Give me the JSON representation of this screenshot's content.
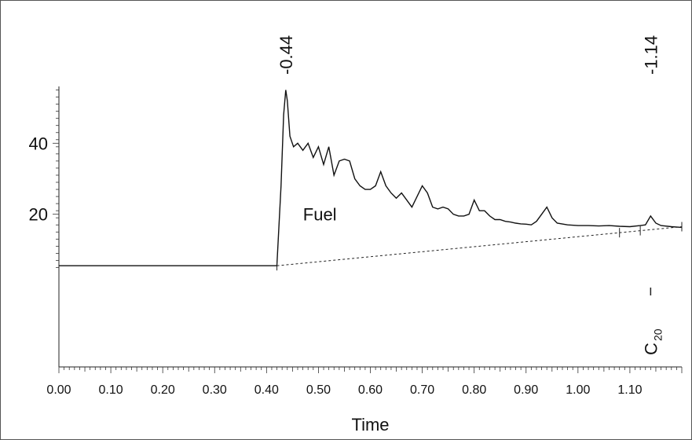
{
  "chart_data": {
    "type": "line",
    "title": "",
    "xlabel": "Time",
    "ylabel": "",
    "xlim": [
      0.0,
      1.2
    ],
    "ylim": [
      -23,
      56
    ],
    "x_ticks": [
      "0.00",
      "0.10",
      "0.20",
      "0.30",
      "0.40",
      "0.50",
      "0.60",
      "0.70",
      "0.80",
      "0.90",
      "1.00",
      "1.10"
    ],
    "y_ticks": [
      "20",
      "40"
    ],
    "series": [
      {
        "x": [
          0.0,
          0.42,
          0.428,
          0.433,
          0.437,
          0.44,
          0.445,
          0.452,
          0.46,
          0.47,
          0.48,
          0.49,
          0.5,
          0.51,
          0.52,
          0.53,
          0.54,
          0.55,
          0.56,
          0.57,
          0.58,
          0.59,
          0.6,
          0.61,
          0.62,
          0.63,
          0.64,
          0.65,
          0.66,
          0.67,
          0.68,
          0.69,
          0.7,
          0.71,
          0.72,
          0.73,
          0.74,
          0.75,
          0.76,
          0.77,
          0.78,
          0.79,
          0.8,
          0.81,
          0.82,
          0.83,
          0.84,
          0.85,
          0.86,
          0.87,
          0.88,
          0.89,
          0.9,
          0.91,
          0.92,
          0.93,
          0.94,
          0.95,
          0.96,
          0.98,
          1.0,
          1.02,
          1.04,
          1.06,
          1.08,
          1.1,
          1.12,
          1.13,
          1.14,
          1.15,
          1.16,
          1.18,
          1.2
        ],
        "y": [
          5.5,
          5.5,
          28,
          48,
          55,
          52,
          42,
          39,
          40,
          38,
          40,
          36,
          39,
          34,
          39,
          31,
          35,
          35.5,
          35,
          30,
          28,
          27,
          27,
          28,
          32,
          28,
          26,
          24.5,
          26,
          24,
          22,
          25,
          28,
          26,
          22,
          21.5,
          22,
          21.5,
          20,
          19.5,
          19.5,
          20,
          24,
          21,
          21,
          19.5,
          18.5,
          18.5,
          18,
          17.8,
          17.5,
          17.3,
          17.2,
          17,
          18,
          20,
          22,
          19,
          17.5,
          17,
          16.8,
          16.8,
          16.7,
          16.8,
          16.6,
          16.5,
          16.8,
          17,
          19.5,
          17.5,
          16.8,
          16.5,
          16.3
        ]
      }
    ],
    "baseline": {
      "x": [
        0.42,
        1.2
      ],
      "y": [
        5.5,
        16.5
      ]
    },
    "annotations": [
      {
        "text": "-0.44",
        "x": 0.437
      },
      {
        "text": "-1.14",
        "x": 1.14
      },
      {
        "text": "Fuel"
      }
    ],
    "peak_label": {
      "main": "C",
      "sub": "20",
      "x": 1.14
    },
    "grid": false
  }
}
